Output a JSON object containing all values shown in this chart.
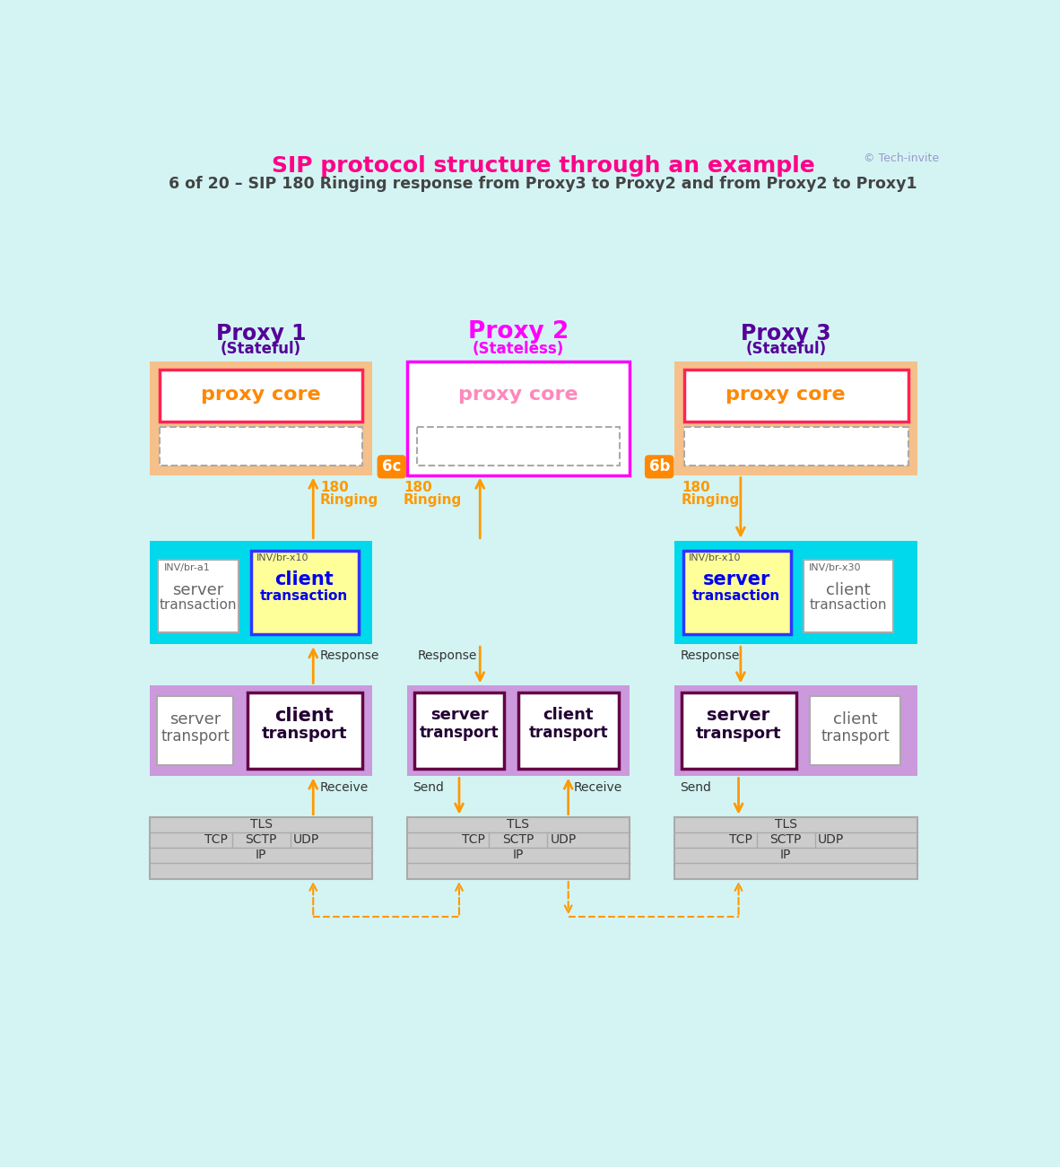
{
  "title_main": "SIP protocol structure through an example",
  "title_sub": "6 of 20 – SIP 180 Ringing response from Proxy3 to Proxy2 and from Proxy2 to Proxy1",
  "copyright": "© Tech-invite",
  "bg_color": "#d4f4f4",
  "proxy1_label": "Proxy 1",
  "proxy1_sub": "(Stateful)",
  "proxy2_label": "Proxy 2",
  "proxy2_sub": "(Stateless)",
  "proxy3_label": "Proxy 3",
  "proxy3_sub": "(Stateful)",
  "proxy_core_label": "proxy core",
  "orange_bg": "#f5c08a",
  "cyan_bg": "#00d8ec",
  "purple_bg": "#cc99dd",
  "proxy1_color": "#550099",
  "proxy2_color": "#ff00ff",
  "proxy3_color": "#550099",
  "orange_text": "#ff8800",
  "pink_text": "#ff88bb",
  "arrow_color": "#ff9900",
  "badge_color": "#ff8800",
  "dark_text": "#333333",
  "gray_text": "#666666",
  "blue_text": "#0000ee",
  "copyright_color": "#9999cc"
}
